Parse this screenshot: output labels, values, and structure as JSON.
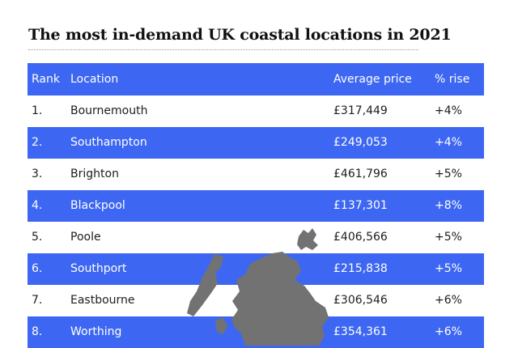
{
  "title": "The most in-demand UK coastal locations in 2021",
  "colors": {
    "stripe": "#3d67f2",
    "map": "#727272",
    "text": "#1d1d1d"
  },
  "chart_data": {
    "type": "table",
    "columns": [
      "Rank",
      "Location",
      "Average price",
      "% rise"
    ],
    "rows": [
      [
        "1.",
        "Bournemouth",
        "£317,449",
        "+4%"
      ],
      [
        "2.",
        "Southampton",
        "£249,053",
        "+4%"
      ],
      [
        "3.",
        "Brighton",
        "£461,796",
        "+5%"
      ],
      [
        "4.",
        "Blackpool",
        "£137,301",
        "+8%"
      ],
      [
        "5.",
        "Poole",
        "£406,566",
        "+5%"
      ],
      [
        "6.",
        "Southport",
        "£215,838",
        "+5%"
      ],
      [
        "7.",
        "Eastbourne",
        "£306,546",
        "+6%"
      ],
      [
        "8.",
        "Worthing",
        "£354,361",
        "+6%"
      ]
    ]
  }
}
